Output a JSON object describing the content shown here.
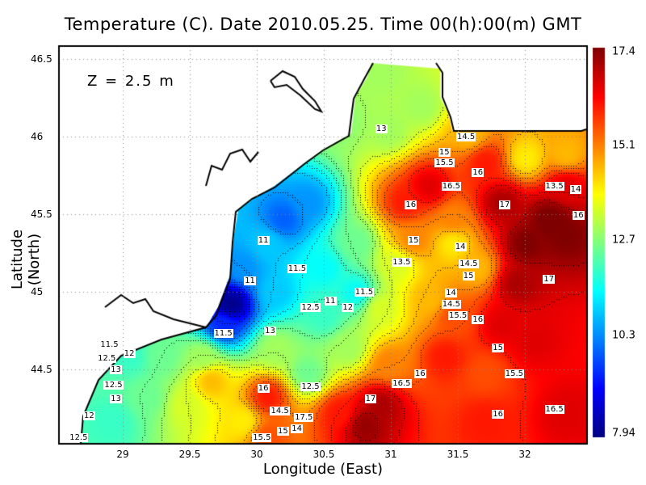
{
  "title": "Temperature (C). Date 2010.05.25. Time 00(h):00(m) GMT",
  "depth_label": "Z = 2.5 m",
  "chart_data": {
    "type": "heatmap",
    "title": "Temperature (C). Date 2010.05.25. Time 00(h):00(m) GMT",
    "xlabel": "Longitude (East)",
    "ylabel": "Latitude (North)",
    "xticks": [
      "29",
      "29.5",
      "30",
      "30.5",
      "31",
      "31.5",
      "32"
    ],
    "yticks": [
      "46.5",
      "46",
      "45.5",
      "45",
      "44.5"
    ],
    "colorbar": {
      "min": 7.94,
      "max": 17.4,
      "ticks": [
        "17.4",
        "15.1",
        "12.7",
        "10.3",
        "7.94"
      ],
      "colormap": "jet"
    },
    "grid": true,
    "contour_interval": 0.5,
    "contour_labels": [
      {
        "v": "13",
        "lon": 30.93,
        "lat": 46.05
      },
      {
        "v": "14.5",
        "lon": 31.56,
        "lat": 46.0
      },
      {
        "v": "15",
        "lon": 31.4,
        "lat": 45.9
      },
      {
        "v": "15.5",
        "lon": 31.4,
        "lat": 45.83
      },
      {
        "v": "16",
        "lon": 31.65,
        "lat": 45.77
      },
      {
        "v": "16.5",
        "lon": 31.45,
        "lat": 45.68
      },
      {
        "v": "16",
        "lon": 31.15,
        "lat": 45.56
      },
      {
        "v": "17",
        "lon": 31.85,
        "lat": 45.56
      },
      {
        "v": "13.5",
        "lon": 32.22,
        "lat": 45.68
      },
      {
        "v": "14",
        "lon": 32.38,
        "lat": 45.66
      },
      {
        "v": "16",
        "lon": 32.4,
        "lat": 45.49
      },
      {
        "v": "15",
        "lon": 31.17,
        "lat": 45.33
      },
      {
        "v": "14",
        "lon": 31.52,
        "lat": 45.29
      },
      {
        "v": "13.5",
        "lon": 31.08,
        "lat": 45.19
      },
      {
        "v": "14.5",
        "lon": 31.58,
        "lat": 45.18
      },
      {
        "v": "15",
        "lon": 31.58,
        "lat": 45.1
      },
      {
        "v": "17",
        "lon": 32.18,
        "lat": 45.08
      },
      {
        "v": "11",
        "lon": 30.05,
        "lat": 45.33
      },
      {
        "v": "11.5",
        "lon": 30.3,
        "lat": 45.15
      },
      {
        "v": "11",
        "lon": 29.95,
        "lat": 45.07
      },
      {
        "v": "11.5",
        "lon": 30.8,
        "lat": 45.0
      },
      {
        "v": "11",
        "lon": 30.55,
        "lat": 44.94
      },
      {
        "v": "12",
        "lon": 30.68,
        "lat": 44.9
      },
      {
        "v": "12.5",
        "lon": 30.4,
        "lat": 44.9
      },
      {
        "v": "14",
        "lon": 31.45,
        "lat": 44.99
      },
      {
        "v": "14.5",
        "lon": 31.45,
        "lat": 44.95
      },
      {
        "v": "15.5",
        "lon": 31.5,
        "lat": 44.88
      },
      {
        "v": "16",
        "lon": 31.65,
        "lat": 44.82
      },
      {
        "v": "11.5",
        "lon": 29.75,
        "lat": 44.73
      },
      {
        "v": "13",
        "lon": 30.1,
        "lat": 44.75
      },
      {
        "v": "11.5",
        "lon": 28.9,
        "lat": 44.66
      },
      {
        "v": "12.5",
        "lon": 28.88,
        "lat": 44.6
      },
      {
        "v": "12",
        "lon": 29.05,
        "lat": 44.6
      },
      {
        "v": "13",
        "lon": 28.95,
        "lat": 44.5
      },
      {
        "v": "15",
        "lon": 31.8,
        "lat": 44.64
      },
      {
        "v": "12.5",
        "lon": 28.93,
        "lat": 44.4
      },
      {
        "v": "16",
        "lon": 31.22,
        "lat": 44.47
      },
      {
        "v": "15.5",
        "lon": 31.92,
        "lat": 44.47
      },
      {
        "v": "16.5",
        "lon": 31.08,
        "lat": 44.41
      },
      {
        "v": "16",
        "lon": 30.05,
        "lat": 44.38
      },
      {
        "v": "12.5",
        "lon": 30.4,
        "lat": 44.39
      },
      {
        "v": "13",
        "lon": 28.95,
        "lat": 44.31
      },
      {
        "v": "17",
        "lon": 30.85,
        "lat": 44.31
      },
      {
        "v": "16",
        "lon": 31.8,
        "lat": 44.21
      },
      {
        "v": "16.5",
        "lon": 32.22,
        "lat": 44.24
      },
      {
        "v": "12",
        "lon": 28.75,
        "lat": 44.2
      },
      {
        "v": "17.5",
        "lon": 30.35,
        "lat": 44.19
      },
      {
        "v": "14",
        "lon": 30.3,
        "lat": 44.15
      },
      {
        "v": "14.5",
        "lon": 30.28,
        "lat": 44.17
      },
      {
        "v": "15",
        "lon": 30.25,
        "lat": 44.1
      },
      {
        "v": "15.5",
        "lon": 30.2,
        "lat": 44.05
      },
      {
        "v": "12.5",
        "lon": 28.67,
        "lat": 44.06
      }
    ]
  }
}
